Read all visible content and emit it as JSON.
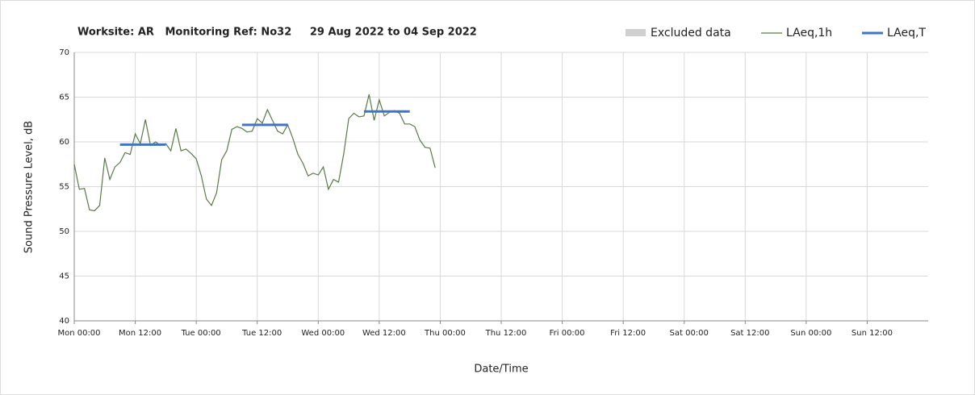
{
  "chart_data": {
    "type": "line",
    "title": "Worksite: AR   Monitoring Ref: No32     29 Aug 2022 to 04 Sep 2022",
    "x_label": "Date/Time",
    "y_label": "Sound Pressure Level, dB",
    "xlim": [
      0,
      168
    ],
    "xticks": [
      {
        "value": 0,
        "label": "Mon 00:00"
      },
      {
        "value": 12,
        "label": "Mon 12:00"
      },
      {
        "value": 24,
        "label": "Tue 00:00"
      },
      {
        "value": 36,
        "label": "Tue 12:00"
      },
      {
        "value": 48,
        "label": "Wed 00:00"
      },
      {
        "value": 60,
        "label": "Wed 12:00"
      },
      {
        "value": 72,
        "label": "Thu 00:00"
      },
      {
        "value": 84,
        "label": "Thu 12:00"
      },
      {
        "value": 96,
        "label": "Fri 00:00"
      },
      {
        "value": 108,
        "label": "Fri 12:00"
      },
      {
        "value": 120,
        "label": "Sat 00:00"
      },
      {
        "value": 132,
        "label": "Sat 12:00"
      },
      {
        "value": 144,
        "label": "Sun 00:00"
      },
      {
        "value": 156,
        "label": "Sun 12:00"
      }
    ],
    "ylim": [
      40,
      70
    ],
    "yticks": [
      40,
      45,
      50,
      55,
      60,
      65,
      70
    ],
    "grid": true,
    "legend": "top-right",
    "series": [
      {
        "name": "Excluded data",
        "color": "#d0d0d0",
        "x": [],
        "values": []
      },
      {
        "name": "LAeq,1h",
        "color": "#5a7a4a",
        "x": [
          0,
          1,
          2,
          3,
          4,
          5,
          6,
          7,
          8,
          9,
          10,
          11,
          12,
          13,
          14,
          15,
          16,
          17,
          18,
          19,
          20,
          21,
          22,
          23,
          24,
          25,
          26,
          27,
          28,
          29,
          30,
          31,
          32,
          33,
          34,
          35,
          36,
          37,
          38,
          39,
          40,
          41,
          42,
          43,
          44,
          45,
          46,
          47,
          48,
          49,
          50,
          51,
          52,
          53,
          54,
          55,
          56,
          57,
          58,
          59,
          60,
          61,
          62,
          63,
          64,
          65,
          66,
          67,
          68,
          69,
          70,
          71
        ],
        "values": [
          57.5,
          54.7,
          54.8,
          52.4,
          52.3,
          52.9,
          58.2,
          55.8,
          57.2,
          57.7,
          58.8,
          58.6,
          60.9,
          59.8,
          62.5,
          59.6,
          60.0,
          59.6,
          59.8,
          59.0,
          61.5,
          59.0,
          59.2,
          58.7,
          58.1,
          56.2,
          53.6,
          52.9,
          54.3,
          58.0,
          59.0,
          61.4,
          61.7,
          61.5,
          61.1,
          61.2,
          62.6,
          62.1,
          63.6,
          62.4,
          61.2,
          60.9,
          61.9,
          60.4,
          58.6,
          57.6,
          56.2,
          56.5,
          56.3,
          57.2,
          54.7,
          55.8,
          55.5,
          58.6,
          62.6,
          63.2,
          62.8,
          62.9,
          65.3,
          62.4,
          64.7,
          62.9,
          63.3,
          63.5,
          63.2,
          62.0,
          62.0,
          61.7,
          60.2,
          59.4,
          59.3,
          57.1
        ]
      },
      {
        "name": "LAeq,T",
        "color": "#4472c4",
        "x": [
          9,
          18,
          null,
          33,
          42,
          null,
          57,
          66
        ],
        "values": [
          59.7,
          59.7,
          null,
          61.9,
          61.9,
          null,
          63.4,
          63.4
        ]
      }
    ]
  }
}
